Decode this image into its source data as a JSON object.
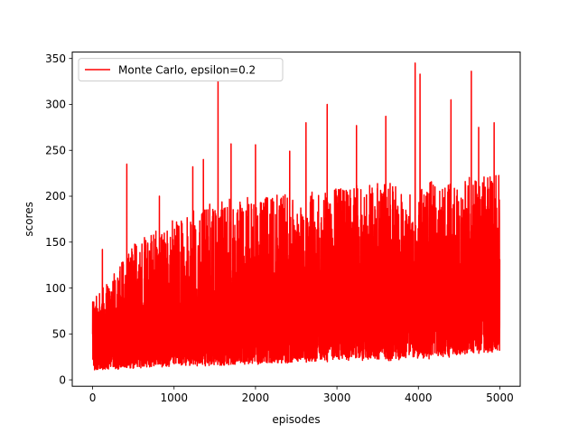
{
  "chart_data": {
    "type": "line",
    "title": "",
    "xlabel": "episodes",
    "ylabel": "scores",
    "xlim": [
      -250,
      5250
    ],
    "ylim": [
      -7,
      357
    ],
    "x_ticks": [
      0,
      1000,
      2000,
      3000,
      4000,
      5000
    ],
    "y_ticks": [
      0,
      50,
      100,
      150,
      200,
      250,
      300,
      350
    ],
    "grid": false,
    "legend_position": "top-left",
    "series": [
      {
        "name": "Monte Carlo, epsilon=0.2",
        "color": "#ff0000",
        "num_points": 5000,
        "x_start": 0,
        "x_step": 1,
        "trend": [
          {
            "x": 0,
            "low": 10,
            "mid": 45,
            "high": 85
          },
          {
            "x": 500,
            "low": 12,
            "mid": 58,
            "high": 150
          },
          {
            "x": 1000,
            "low": 14,
            "mid": 65,
            "high": 175
          },
          {
            "x": 1500,
            "low": 15,
            "mid": 70,
            "high": 195
          },
          {
            "x": 2000,
            "low": 16,
            "mid": 75,
            "high": 200
          },
          {
            "x": 2500,
            "low": 18,
            "mid": 80,
            "high": 205
          },
          {
            "x": 3000,
            "low": 20,
            "mid": 88,
            "high": 210
          },
          {
            "x": 3500,
            "low": 20,
            "mid": 92,
            "high": 215
          },
          {
            "x": 4000,
            "low": 22,
            "mid": 95,
            "high": 215
          },
          {
            "x": 4500,
            "low": 25,
            "mid": 100,
            "high": 220
          },
          {
            "x": 5000,
            "low": 30,
            "mid": 105,
            "high": 225
          }
        ],
        "peaks": [
          {
            "x": 120,
            "y": 142
          },
          {
            "x": 420,
            "y": 235
          },
          {
            "x": 820,
            "y": 200
          },
          {
            "x": 1230,
            "y": 232
          },
          {
            "x": 1360,
            "y": 240
          },
          {
            "x": 1540,
            "y": 325
          },
          {
            "x": 1700,
            "y": 257
          },
          {
            "x": 2000,
            "y": 256
          },
          {
            "x": 2420,
            "y": 249
          },
          {
            "x": 2620,
            "y": 280
          },
          {
            "x": 2880,
            "y": 300
          },
          {
            "x": 3240,
            "y": 277
          },
          {
            "x": 3600,
            "y": 287
          },
          {
            "x": 3960,
            "y": 345
          },
          {
            "x": 4020,
            "y": 333
          },
          {
            "x": 4400,
            "y": 305
          },
          {
            "x": 4650,
            "y": 336
          },
          {
            "x": 4740,
            "y": 275
          },
          {
            "x": 4930,
            "y": 280
          }
        ]
      }
    ]
  }
}
